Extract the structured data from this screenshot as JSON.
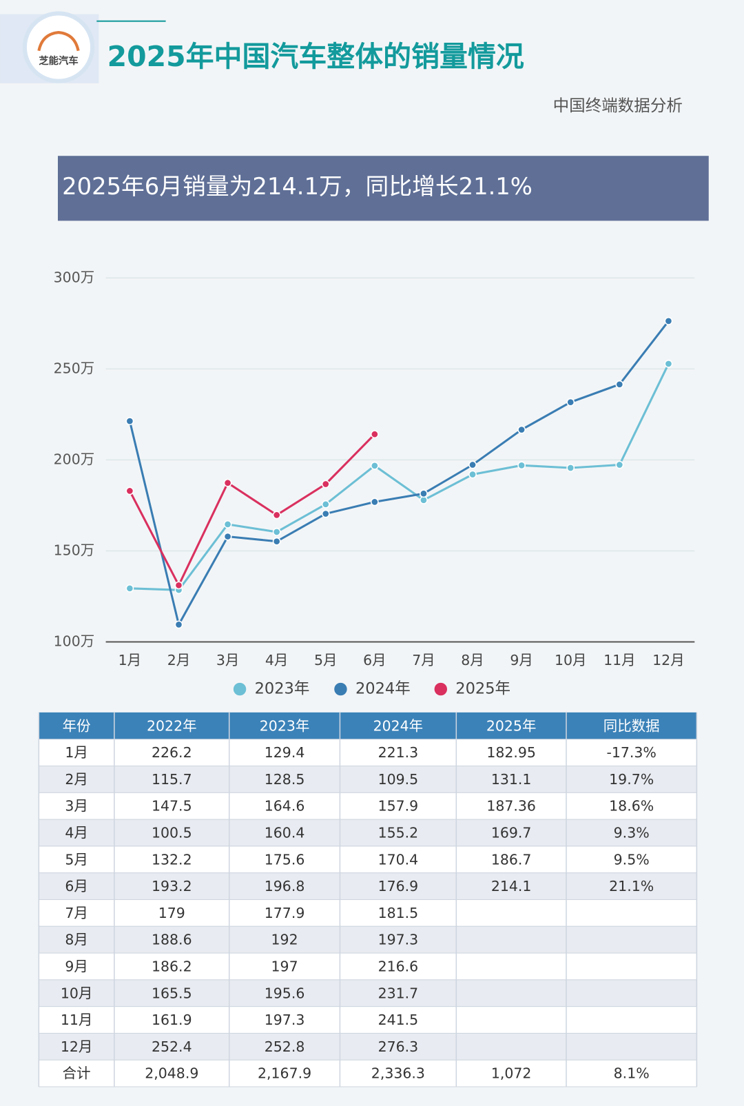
{
  "header": {
    "logo": "芝能汽车",
    "title": "2025年中国汽车整体的销量情况",
    "subtitle": "中国终端数据分析"
  },
  "banner": "2025年6月销量为214.1万，同比增长21.1%",
  "chart_data": {
    "type": "line",
    "categories": [
      "1月",
      "2月",
      "3月",
      "4月",
      "5月",
      "6月",
      "7月",
      "8月",
      "9月",
      "10月",
      "11月",
      "12月"
    ],
    "series": [
      {
        "name": "2023年",
        "color": "#6cbfd5",
        "values": [
          129.4,
          128.5,
          164.6,
          160.4,
          175.6,
          196.8,
          177.9,
          192,
          197,
          195.6,
          197.3,
          252.8
        ]
      },
      {
        "name": "2024年",
        "color": "#3a7db3",
        "values": [
          221.3,
          109.5,
          157.9,
          155.2,
          170.4,
          176.9,
          181.5,
          197.3,
          216.6,
          231.7,
          241.5,
          276.3
        ]
      },
      {
        "name": "2025年",
        "color": "#d9305f",
        "values": [
          182.95,
          131.1,
          187.36,
          169.7,
          186.7,
          214.1,
          null,
          null,
          null,
          null,
          null,
          null
        ]
      }
    ],
    "ylim": [
      100,
      300
    ],
    "yticks": [
      {
        "value": 100,
        "label": "100万"
      },
      {
        "value": 150,
        "label": "150万"
      },
      {
        "value": 200,
        "label": "200万"
      },
      {
        "value": 250,
        "label": "250万"
      },
      {
        "value": 300,
        "label": "300万"
      }
    ],
    "grid": true,
    "legend": "bottom"
  },
  "table": {
    "header": [
      "年份",
      "2022年",
      "2023年",
      "2024年",
      "2025年",
      "同比数据"
    ],
    "rows": [
      [
        "1月",
        "226.2",
        "129.4",
        "221.3",
        "182.95",
        "-17.3%"
      ],
      [
        "2月",
        "115.7",
        "128.5",
        "109.5",
        "131.1",
        "19.7%"
      ],
      [
        "3月",
        "147.5",
        "164.6",
        "157.9",
        "187.36",
        "18.6%"
      ],
      [
        "4月",
        "100.5",
        "160.4",
        "155.2",
        "169.7",
        "9.3%"
      ],
      [
        "5月",
        "132.2",
        "175.6",
        "170.4",
        "186.7",
        "9.5%"
      ],
      [
        "6月",
        "193.2",
        "196.8",
        "176.9",
        "214.1",
        "21.1%"
      ],
      [
        "7月",
        "179",
        "177.9",
        "181.5"
      ],
      [
        "8月",
        "188.6",
        "192",
        "197.3"
      ],
      [
        "9月",
        "186.2",
        "197",
        "216.6"
      ],
      [
        "10月",
        "165.5",
        "195.6",
        "231.7"
      ],
      [
        "11月",
        "161.9",
        "197.3",
        "241.5"
      ],
      [
        "12月",
        "252.4",
        "252.8",
        "276.3"
      ],
      [
        "合计",
        "2,048.9",
        "2,167.9",
        "2,336.3",
        "1,072",
        "8.1%"
      ]
    ]
  }
}
